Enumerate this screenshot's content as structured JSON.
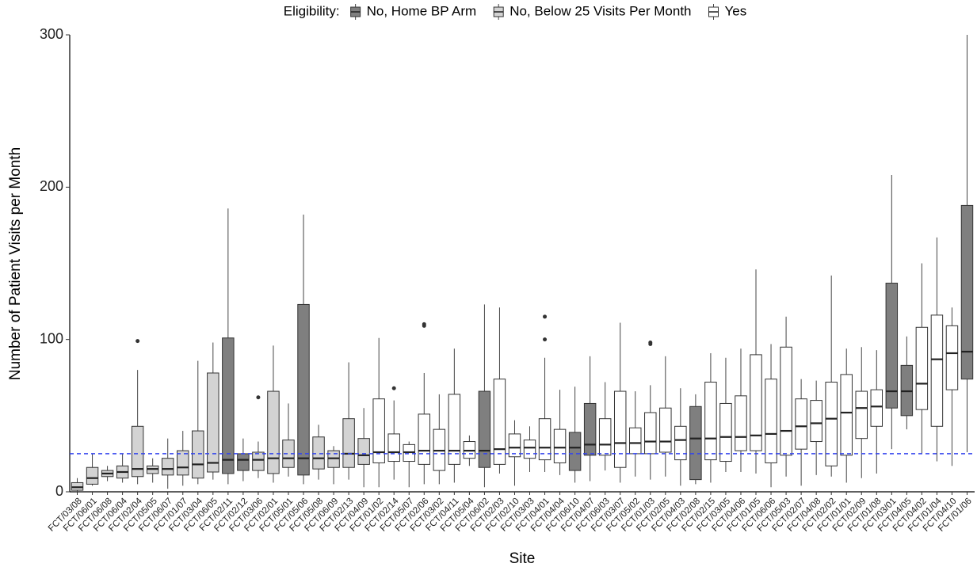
{
  "chart_data": {
    "type": "box",
    "x_label": "Site",
    "y_label": "Number of Patient Visits per Month",
    "legend_title": "Eligibility:",
    "legend_position": "top",
    "series": [
      {
        "name": "No, Home BP Arm",
        "color": "#7f7f7f"
      },
      {
        "name": "No, Below 25 Visits Per Month",
        "color": "#d3d3d3"
      },
      {
        "name": "Yes",
        "color": "#ffffff"
      }
    ],
    "categories": [
      "FCT/03/08",
      "FCT/06/01",
      "FCT/06/08",
      "FCT/06/04",
      "FCT/02/04",
      "FCT/05/05",
      "FCT/06/07",
      "FCT/01/07",
      "FCT/03/04",
      "FCT/06/05",
      "FCT/02/11",
      "FCT/02/12",
      "FCT/03/06",
      "FCT/02/01",
      "FCT/05/01",
      "FCT/05/06",
      "FCT/05/08",
      "FCT/06/09",
      "FCT/02/13",
      "FCT/04/09",
      "FCT/01/02",
      "FCT/02/14",
      "FCT/05/07",
      "FCT/02/06",
      "FCT/03/02",
      "FCT/04/11",
      "FCT/05/04",
      "FCT/06/02",
      "FCT/02/03",
      "FCT/02/10",
      "FCT/03/03",
      "FCT/04/01",
      "FCT/04/04",
      "FCT/06/10",
      "FCT/04/07",
      "FCT/06/03",
      "FCT/03/07",
      "FCT/05/02",
      "FCT/01/03",
      "FCT/02/05",
      "FCT/04/03",
      "FCT/02/08",
      "FCT/02/15",
      "FCT/03/05",
      "FCT/04/06",
      "FCT/01/05",
      "FCT/06/06",
      "FCT/05/03",
      "FCT/02/07",
      "FCT/04/08",
      "FCT/02/02",
      "FCT/01/01",
      "FCT/02/09",
      "FCT/01/08",
      "FCT/03/01",
      "FCT/04/05",
      "FCT/04/02",
      "FCT/01/04",
      "FCT/04/10",
      "FCT/01/06"
    ],
    "eligibility": [
      "No, Below 25 Visits Per Month",
      "No, Below 25 Visits Per Month",
      "No, Below 25 Visits Per Month",
      "No, Below 25 Visits Per Month",
      "No, Below 25 Visits Per Month",
      "No, Below 25 Visits Per Month",
      "No, Below 25 Visits Per Month",
      "No, Below 25 Visits Per Month",
      "No, Below 25 Visits Per Month",
      "No, Below 25 Visits Per Month",
      "No, Home BP Arm",
      "No, Home BP Arm",
      "No, Below 25 Visits Per Month",
      "No, Below 25 Visits Per Month",
      "No, Below 25 Visits Per Month",
      "No, Home BP Arm",
      "No, Below 25 Visits Per Month",
      "No, Below 25 Visits Per Month",
      "No, Below 25 Visits Per Month",
      "No, Below 25 Visits Per Month",
      "Yes",
      "Yes",
      "Yes",
      "Yes",
      "Yes",
      "Yes",
      "Yes",
      "No, Home BP Arm",
      "Yes",
      "Yes",
      "Yes",
      "Yes",
      "Yes",
      "No, Home BP Arm",
      "No, Home BP Arm",
      "Yes",
      "Yes",
      "Yes",
      "Yes",
      "Yes",
      "Yes",
      "No, Home BP Arm",
      "Yes",
      "Yes",
      "Yes",
      "Yes",
      "Yes",
      "Yes",
      "Yes",
      "Yes",
      "Yes",
      "Yes",
      "Yes",
      "Yes",
      "No, Home BP Arm",
      "No, Home BP Arm",
      "Yes",
      "Yes",
      "Yes",
      "No, Home BP Arm"
    ],
    "stats": [
      {
        "min": 0,
        "q1": 1,
        "median": 3,
        "q3": 6,
        "max": 9,
        "outliers": []
      },
      {
        "min": 4,
        "q1": 5,
        "median": 9,
        "q3": 16,
        "max": 25,
        "outliers": []
      },
      {
        "min": 7,
        "q1": 10,
        "median": 12,
        "q3": 14,
        "max": 17,
        "outliers": []
      },
      {
        "min": 6,
        "q1": 9,
        "median": 13,
        "q3": 17,
        "max": 25,
        "outliers": []
      },
      {
        "min": 5,
        "q1": 10,
        "median": 15,
        "q3": 43,
        "max": 80,
        "outliers": [
          99
        ]
      },
      {
        "min": 6,
        "q1": 12,
        "median": 15,
        "q3": 17,
        "max": 22,
        "outliers": []
      },
      {
        "min": 2,
        "q1": 11,
        "median": 15,
        "q3": 22,
        "max": 35,
        "outliers": []
      },
      {
        "min": 4,
        "q1": 11,
        "median": 16,
        "q3": 27,
        "max": 40,
        "outliers": []
      },
      {
        "min": 5,
        "q1": 9,
        "median": 18,
        "q3": 40,
        "max": 86,
        "outliers": []
      },
      {
        "min": 8,
        "q1": 13,
        "median": 19,
        "q3": 78,
        "max": 98,
        "outliers": []
      },
      {
        "min": 5,
        "q1": 12,
        "median": 21,
        "q3": 101,
        "max": 186,
        "outliers": []
      },
      {
        "min": 7,
        "q1": 14,
        "median": 21,
        "q3": 25,
        "max": 35,
        "outliers": []
      },
      {
        "min": 9,
        "q1": 14,
        "median": 21,
        "q3": 26,
        "max": 33,
        "outliers": [
          62
        ]
      },
      {
        "min": 6,
        "q1": 12,
        "median": 22,
        "q3": 66,
        "max": 96,
        "outliers": []
      },
      {
        "min": 10,
        "q1": 16,
        "median": 22,
        "q3": 34,
        "max": 58,
        "outliers": []
      },
      {
        "min": 5,
        "q1": 11,
        "median": 22,
        "q3": 123,
        "max": 182,
        "outliers": []
      },
      {
        "min": 8,
        "q1": 15,
        "median": 22,
        "q3": 36,
        "max": 44,
        "outliers": []
      },
      {
        "min": 5,
        "q1": 16,
        "median": 22,
        "q3": 27,
        "max": 30,
        "outliers": []
      },
      {
        "min": 8,
        "q1": 16,
        "median": 25,
        "q3": 48,
        "max": 85,
        "outliers": []
      },
      {
        "min": 3,
        "q1": 18,
        "median": 24,
        "q3": 35,
        "max": 55,
        "outliers": []
      },
      {
        "min": 3,
        "q1": 19,
        "median": 26,
        "q3": 61,
        "max": 101,
        "outliers": []
      },
      {
        "min": 8,
        "q1": 20,
        "median": 26,
        "q3": 38,
        "max": 60,
        "outliers": [
          68
        ]
      },
      {
        "min": 3,
        "q1": 20,
        "median": 26,
        "q3": 31,
        "max": 33,
        "outliers": []
      },
      {
        "min": 5,
        "q1": 18,
        "median": 27,
        "q3": 51,
        "max": 78,
        "outliers": [
          109,
          110
        ]
      },
      {
        "min": 5,
        "q1": 14,
        "median": 27,
        "q3": 41,
        "max": 64,
        "outliers": []
      },
      {
        "min": 6,
        "q1": 18,
        "median": 27,
        "q3": 64,
        "max": 94,
        "outliers": []
      },
      {
        "min": 17,
        "q1": 22,
        "median": 27,
        "q3": 33,
        "max": 37,
        "outliers": []
      },
      {
        "min": 3,
        "q1": 16,
        "median": 27,
        "q3": 66,
        "max": 123,
        "outliers": []
      },
      {
        "min": 12,
        "q1": 18,
        "median": 28,
        "q3": 74,
        "max": 121,
        "outliers": []
      },
      {
        "min": 4,
        "q1": 23,
        "median": 29,
        "q3": 38,
        "max": 47,
        "outliers": []
      },
      {
        "min": 13,
        "q1": 22,
        "median": 29,
        "q3": 34,
        "max": 43,
        "outliers": []
      },
      {
        "min": 13,
        "q1": 21,
        "median": 29,
        "q3": 48,
        "max": 88,
        "outliers": [
          100,
          115
        ]
      },
      {
        "min": 11,
        "q1": 19,
        "median": 29,
        "q3": 41,
        "max": 67,
        "outliers": []
      },
      {
        "min": 6,
        "q1": 14,
        "median": 29,
        "q3": 39,
        "max": 69,
        "outliers": []
      },
      {
        "min": 7,
        "q1": 24,
        "median": 31,
        "q3": 58,
        "max": 89,
        "outliers": []
      },
      {
        "min": 14,
        "q1": 24,
        "median": 31,
        "q3": 48,
        "max": 72,
        "outliers": []
      },
      {
        "min": 6,
        "q1": 16,
        "median": 32,
        "q3": 66,
        "max": 111,
        "outliers": []
      },
      {
        "min": 10,
        "q1": 25,
        "median": 32,
        "q3": 42,
        "max": 66,
        "outliers": []
      },
      {
        "min": 8,
        "q1": 25,
        "median": 33,
        "q3": 52,
        "max": 70,
        "outliers": [
          97,
          98
        ]
      },
      {
        "min": 10,
        "q1": 26,
        "median": 33,
        "q3": 55,
        "max": 89,
        "outliers": []
      },
      {
        "min": 4,
        "q1": 21,
        "median": 34,
        "q3": 43,
        "max": 68,
        "outliers": []
      },
      {
        "min": 5,
        "q1": 8,
        "median": 35,
        "q3": 56,
        "max": 64,
        "outliers": []
      },
      {
        "min": 6,
        "q1": 21,
        "median": 35,
        "q3": 72,
        "max": 91,
        "outliers": []
      },
      {
        "min": 13,
        "q1": 20,
        "median": 36,
        "q3": 58,
        "max": 88,
        "outliers": []
      },
      {
        "min": 13,
        "q1": 27,
        "median": 36,
        "q3": 63,
        "max": 94,
        "outliers": []
      },
      {
        "min": 12,
        "q1": 27,
        "median": 37,
        "q3": 90,
        "max": 146,
        "outliers": []
      },
      {
        "min": 3,
        "q1": 19,
        "median": 38,
        "q3": 74,
        "max": 97,
        "outliers": []
      },
      {
        "min": 10,
        "q1": 24,
        "median": 40,
        "q3": 95,
        "max": 115,
        "outliers": []
      },
      {
        "min": 4,
        "q1": 28,
        "median": 43,
        "q3": 61,
        "max": 74,
        "outliers": []
      },
      {
        "min": 11,
        "q1": 33,
        "median": 45,
        "q3": 60,
        "max": 73,
        "outliers": []
      },
      {
        "min": 10,
        "q1": 17,
        "median": 48,
        "q3": 72,
        "max": 142,
        "outliers": []
      },
      {
        "min": 6,
        "q1": 24,
        "median": 52,
        "q3": 77,
        "max": 94,
        "outliers": []
      },
      {
        "min": 9,
        "q1": 35,
        "median": 55,
        "q3": 66,
        "max": 95,
        "outliers": []
      },
      {
        "min": 12,
        "q1": 43,
        "median": 56,
        "q3": 67,
        "max": 93,
        "outliers": []
      },
      {
        "min": 28,
        "q1": 55,
        "median": 66,
        "q3": 137,
        "max": 208,
        "outliers": []
      },
      {
        "min": 41,
        "q1": 50,
        "median": 66,
        "q3": 83,
        "max": 102,
        "outliers": []
      },
      {
        "min": 25,
        "q1": 54,
        "median": 71,
        "q3": 108,
        "max": 150,
        "outliers": []
      },
      {
        "min": 20,
        "q1": 43,
        "median": 87,
        "q3": 116,
        "max": 167,
        "outliers": []
      },
      {
        "min": 17,
        "q1": 67,
        "median": 91,
        "q3": 109,
        "max": 121,
        "outliers": []
      },
      {
        "min": 26,
        "q1": 74,
        "median": 92,
        "q3": 188,
        "max": 300,
        "outliers": []
      }
    ],
    "reference_line": {
      "value": 25,
      "color": "#3344ee"
    },
    "ylim": [
      0,
      300
    ],
    "yticks": [
      0,
      100,
      200,
      300
    ],
    "grid": false
  }
}
